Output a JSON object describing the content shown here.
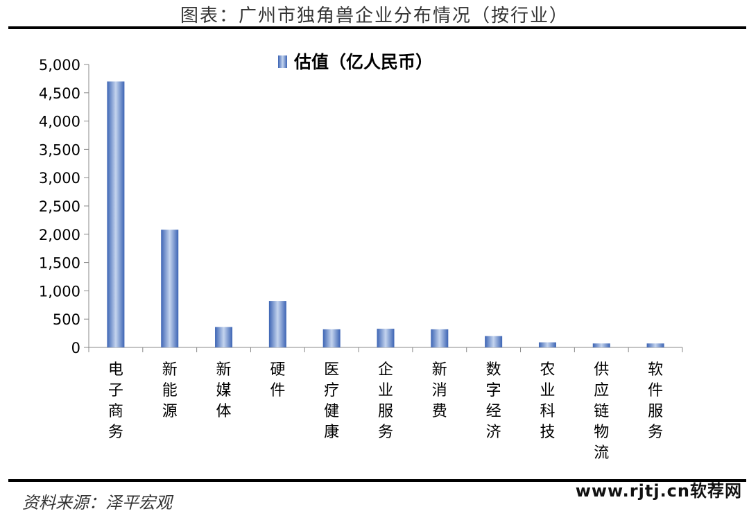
{
  "header": {
    "title": "图表：广州市独角兽企业分布情况（按行业）"
  },
  "chart_data": {
    "type": "bar",
    "categories": [
      "电子商务",
      "新能源",
      "新媒体",
      "硬件",
      "医疗健康",
      "企业服务",
      "新消费",
      "数字经济",
      "农业科技",
      "供应链物流",
      "软件服务"
    ],
    "series": [
      {
        "name": "估值（亿人民币）",
        "values": [
          4700,
          2080,
          360,
          820,
          320,
          330,
          320,
          200,
          90,
          70,
          70
        ]
      }
    ],
    "ylim": [
      0,
      5000
    ],
    "yticks": [
      0,
      500,
      1000,
      1500,
      2000,
      2500,
      3000,
      3500,
      4000,
      4500,
      5000
    ],
    "ytick_labels": [
      "0",
      "500",
      "1,000",
      "1,500",
      "2,000",
      "2,500",
      "3,000",
      "3,500",
      "4,000",
      "4,500",
      "5,000"
    ],
    "legend_position": "top-center",
    "grid": false,
    "colors": {
      "bar_dark": "#3c64b4",
      "bar_light": "#c4d4ee"
    }
  },
  "footer": {
    "source": "资料来源：泽平宏观",
    "watermark": "www.rjtj.cn软荐网"
  }
}
